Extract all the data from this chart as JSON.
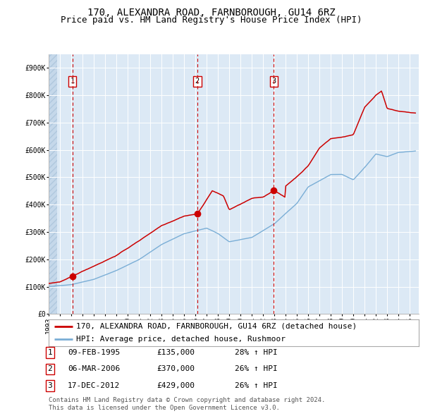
{
  "title": "170, ALEXANDRA ROAD, FARNBOROUGH, GU14 6RZ",
  "subtitle": "Price paid vs. HM Land Registry's House Price Index (HPI)",
  "ylim": [
    0,
    950000
  ],
  "yticks": [
    0,
    100000,
    200000,
    300000,
    400000,
    500000,
    600000,
    700000,
    800000,
    900000
  ],
  "ytick_labels": [
    "£0",
    "£100K",
    "£200K",
    "£300K",
    "£400K",
    "£500K",
    "£600K",
    "£700K",
    "£800K",
    "£900K"
  ],
  "xlim_start": 1993.0,
  "xlim_end": 2025.8,
  "bg_plot": "#dce9f5",
  "bg_hatch_color": "#c5d8ea",
  "grid_color": "#ffffff",
  "red_line_color": "#cc0000",
  "blue_line_color": "#7aaed6",
  "vline_color": "#cc0000",
  "legend_red_label": "170, ALEXANDRA ROAD, FARNBOROUGH, GU14 6RZ (detached house)",
  "legend_blue_label": "HPI: Average price, detached house, Rushmoor",
  "purchase_events": [
    {
      "num": 1,
      "date": 1995.1,
      "price": 135000,
      "date_str": "09-FEB-1995",
      "price_str": "£135,000",
      "pct_str": "28% ↑ HPI"
    },
    {
      "num": 2,
      "date": 2006.17,
      "price": 370000,
      "date_str": "06-MAR-2006",
      "price_str": "£370,000",
      "pct_str": "26% ↑ HPI"
    },
    {
      "num": 3,
      "date": 2012.96,
      "price": 429000,
      "date_str": "17-DEC-2012",
      "price_str": "£429,000",
      "pct_str": "26% ↑ HPI"
    }
  ],
  "footer_line1": "Contains HM Land Registry data © Crown copyright and database right 2024.",
  "footer_line2": "This data is licensed under the Open Government Licence v3.0.",
  "title_fontsize": 10,
  "subtitle_fontsize": 9,
  "tick_fontsize": 7,
  "legend_fontsize": 8,
  "table_fontsize": 8,
  "footer_fontsize": 6.5
}
